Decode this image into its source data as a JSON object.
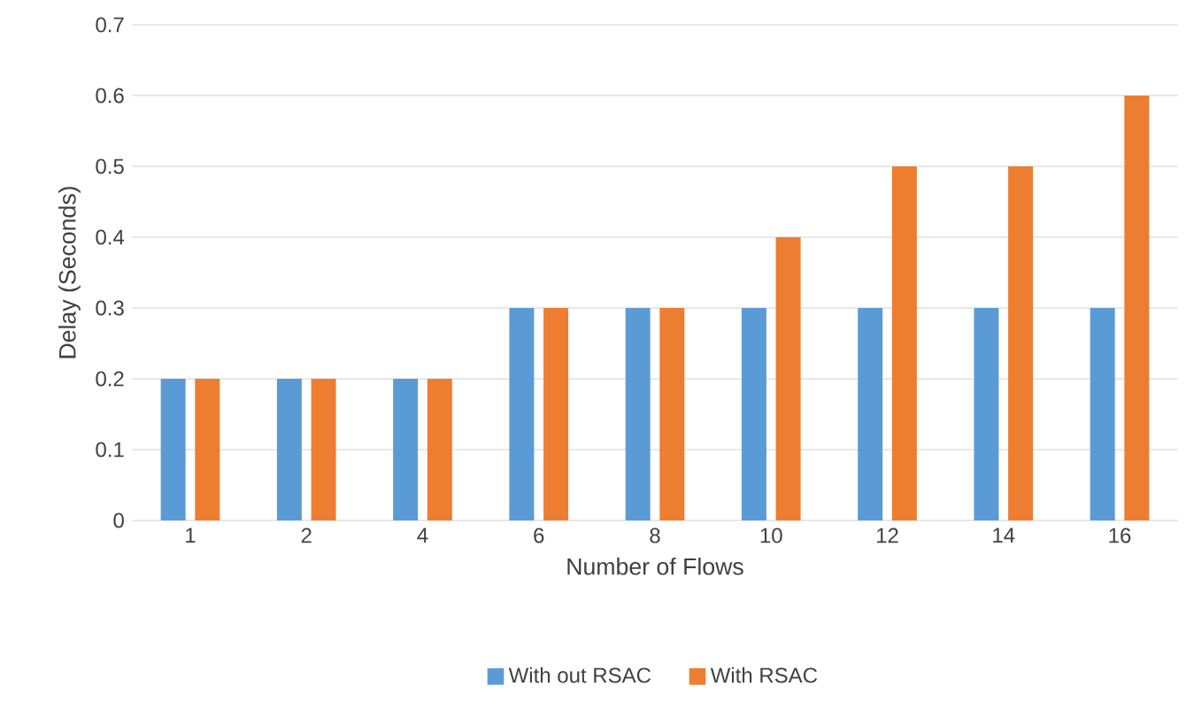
{
  "chart_data": {
    "type": "bar",
    "xlabel": "Number  of Flows",
    "ylabel": "Delay (Seconds)",
    "categories": [
      "1",
      "2",
      "4",
      "6",
      "8",
      "10",
      "12",
      "14",
      "16"
    ],
    "series": [
      {
        "name": "With out RSAC",
        "color": "#5b9bd5",
        "values": [
          0.2,
          0.2,
          0.2,
          0.3,
          0.3,
          0.3,
          0.3,
          0.3,
          0.3
        ]
      },
      {
        "name": "With RSAC",
        "color": "#ed7d31",
        "values": [
          0.2,
          0.2,
          0.2,
          0.3,
          0.3,
          0.4,
          0.5,
          0.5,
          0.6
        ]
      }
    ],
    "ylim": [
      0,
      0.7
    ],
    "yticks": [
      0,
      0.1,
      0.2,
      0.3,
      0.4,
      0.5,
      0.6,
      0.7
    ],
    "grid": "y",
    "legend": "bottom"
  }
}
